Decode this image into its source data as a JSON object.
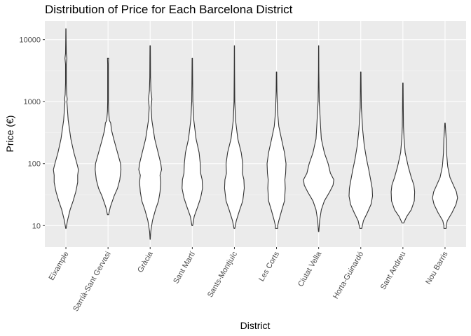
{
  "chart_data": {
    "type": "violin",
    "title": "Distribution of Price for Each Barcelona District",
    "xlabel": "District",
    "ylabel": "Price (€)",
    "y_scale": "log10",
    "ylim": [
      4.5,
      20000
    ],
    "y_ticks": [
      10,
      100,
      1000,
      10000
    ],
    "y_tick_labels": [
      "10",
      "100",
      "1000",
      "10000"
    ],
    "grid": true,
    "categories": [
      "Eixample",
      "Sarrià-Sant Gervasi",
      "Gràcia",
      "Sant Martí",
      "Sants-Montjuïc",
      "Les Corts",
      "Ciutat Vella",
      "Horta-Guinardó",
      "Sant Andreu",
      "Nou Barris"
    ],
    "series": [
      {
        "category": "Eixample",
        "min": 9,
        "max": 15000,
        "profile": [
          [
            9,
            0.01
          ],
          [
            12,
            0.08
          ],
          [
            18,
            0.22
          ],
          [
            25,
            0.38
          ],
          [
            35,
            0.52
          ],
          [
            50,
            0.62
          ],
          [
            65,
            0.62
          ],
          [
            80,
            0.66
          ],
          [
            100,
            0.58
          ],
          [
            150,
            0.42
          ],
          [
            250,
            0.26
          ],
          [
            500,
            0.12
          ],
          [
            1000,
            0.05
          ],
          [
            1100,
            0.07
          ],
          [
            1300,
            0.04
          ],
          [
            2000,
            0.02
          ],
          [
            4000,
            0.02
          ],
          [
            5000,
            0.05
          ],
          [
            6000,
            0.02
          ],
          [
            10000,
            0.01
          ],
          [
            15000,
            0.005
          ]
        ]
      },
      {
        "category": "Sarrià-Sant Gervasi",
        "min": 15,
        "max": 5000,
        "profile": [
          [
            15,
            0.03
          ],
          [
            20,
            0.12
          ],
          [
            30,
            0.32
          ],
          [
            40,
            0.5
          ],
          [
            55,
            0.62
          ],
          [
            80,
            0.68
          ],
          [
            100,
            0.66
          ],
          [
            150,
            0.5
          ],
          [
            250,
            0.3
          ],
          [
            350,
            0.18
          ],
          [
            450,
            0.14
          ],
          [
            500,
            0.07
          ],
          [
            700,
            0.03
          ],
          [
            1000,
            0.02
          ],
          [
            2000,
            0.02
          ],
          [
            4000,
            0.02
          ],
          [
            5000,
            0.03
          ]
        ]
      },
      {
        "category": "Gràcia",
        "min": 6,
        "max": 8000,
        "profile": [
          [
            6,
            0.005
          ],
          [
            8,
            0.03
          ],
          [
            12,
            0.12
          ],
          [
            18,
            0.28
          ],
          [
            25,
            0.44
          ],
          [
            35,
            0.52
          ],
          [
            50,
            0.56
          ],
          [
            65,
            0.52
          ],
          [
            80,
            0.6
          ],
          [
            100,
            0.56
          ],
          [
            150,
            0.42
          ],
          [
            250,
            0.24
          ],
          [
            500,
            0.09
          ],
          [
            800,
            0.05
          ],
          [
            1100,
            0.09
          ],
          [
            1500,
            0.04
          ],
          [
            2500,
            0.02
          ],
          [
            5000,
            0.015
          ],
          [
            8000,
            0.01
          ]
        ]
      },
      {
        "category": "Sant Martí",
        "min": 10,
        "max": 5000,
        "profile": [
          [
            10,
            0.02
          ],
          [
            14,
            0.1
          ],
          [
            20,
            0.28
          ],
          [
            28,
            0.44
          ],
          [
            40,
            0.54
          ],
          [
            55,
            0.52
          ],
          [
            70,
            0.44
          ],
          [
            100,
            0.42
          ],
          [
            150,
            0.36
          ],
          [
            250,
            0.2
          ],
          [
            500,
            0.08
          ],
          [
            1000,
            0.03
          ],
          [
            2000,
            0.02
          ],
          [
            5000,
            0.01
          ]
        ]
      },
      {
        "category": "Sants-Montjuïc",
        "min": 9,
        "max": 8000,
        "profile": [
          [
            9,
            0.02
          ],
          [
            12,
            0.1
          ],
          [
            18,
            0.28
          ],
          [
            25,
            0.44
          ],
          [
            40,
            0.52
          ],
          [
            55,
            0.5
          ],
          [
            70,
            0.42
          ],
          [
            100,
            0.44
          ],
          [
            150,
            0.36
          ],
          [
            250,
            0.18
          ],
          [
            500,
            0.06
          ],
          [
            1000,
            0.02
          ],
          [
            3000,
            0.01
          ],
          [
            8000,
            0.005
          ]
        ]
      },
      {
        "category": "Les Corts",
        "min": 9,
        "max": 3000,
        "profile": [
          [
            9,
            0.06
          ],
          [
            10,
            0.06
          ],
          [
            12,
            0.12
          ],
          [
            18,
            0.28
          ],
          [
            25,
            0.42
          ],
          [
            40,
            0.46
          ],
          [
            55,
            0.44
          ],
          [
            70,
            0.48
          ],
          [
            100,
            0.5
          ],
          [
            150,
            0.42
          ],
          [
            250,
            0.26
          ],
          [
            400,
            0.12
          ],
          [
            700,
            0.05
          ],
          [
            1500,
            0.02
          ],
          [
            3000,
            0.01
          ]
        ]
      },
      {
        "category": "Ciutat Vella",
        "min": 8,
        "max": 8000,
        "profile": [
          [
            8,
            0.01
          ],
          [
            12,
            0.05
          ],
          [
            18,
            0.14
          ],
          [
            25,
            0.3
          ],
          [
            35,
            0.58
          ],
          [
            45,
            0.76
          ],
          [
            55,
            0.8
          ],
          [
            70,
            0.62
          ],
          [
            100,
            0.5
          ],
          [
            150,
            0.3
          ],
          [
            250,
            0.14
          ],
          [
            400,
            0.1
          ],
          [
            600,
            0.07
          ],
          [
            1000,
            0.03
          ],
          [
            3000,
            0.01
          ],
          [
            8000,
            0.005
          ]
        ]
      },
      {
        "category": "Horta-Guinardó",
        "min": 9,
        "max": 3000,
        "profile": [
          [
            9,
            0.05
          ],
          [
            12,
            0.14
          ],
          [
            16,
            0.34
          ],
          [
            22,
            0.54
          ],
          [
            30,
            0.62
          ],
          [
            40,
            0.6
          ],
          [
            55,
            0.52
          ],
          [
            80,
            0.42
          ],
          [
            120,
            0.3
          ],
          [
            200,
            0.18
          ],
          [
            350,
            0.1
          ],
          [
            500,
            0.07
          ],
          [
            800,
            0.03
          ],
          [
            1500,
            0.02
          ],
          [
            3000,
            0.01
          ]
        ]
      },
      {
        "category": "Sant Andreu",
        "min": 11,
        "max": 2000,
        "profile": [
          [
            11,
            0.04
          ],
          [
            14,
            0.2
          ],
          [
            18,
            0.44
          ],
          [
            25,
            0.6
          ],
          [
            35,
            0.62
          ],
          [
            45,
            0.58
          ],
          [
            60,
            0.44
          ],
          [
            90,
            0.28
          ],
          [
            150,
            0.12
          ],
          [
            250,
            0.06
          ],
          [
            400,
            0.03
          ],
          [
            800,
            0.02
          ],
          [
            2000,
            0.01
          ]
        ]
      },
      {
        "category": "Nou Barris",
        "min": 9,
        "max": 450,
        "profile": [
          [
            9,
            0.06
          ],
          [
            10,
            0.06
          ],
          [
            12,
            0.12
          ],
          [
            16,
            0.36
          ],
          [
            22,
            0.58
          ],
          [
            28,
            0.66
          ],
          [
            35,
            0.6
          ],
          [
            45,
            0.44
          ],
          [
            60,
            0.26
          ],
          [
            90,
            0.14
          ],
          [
            150,
            0.08
          ],
          [
            250,
            0.06
          ],
          [
            350,
            0.03
          ],
          [
            450,
            0.01
          ]
        ]
      }
    ]
  }
}
